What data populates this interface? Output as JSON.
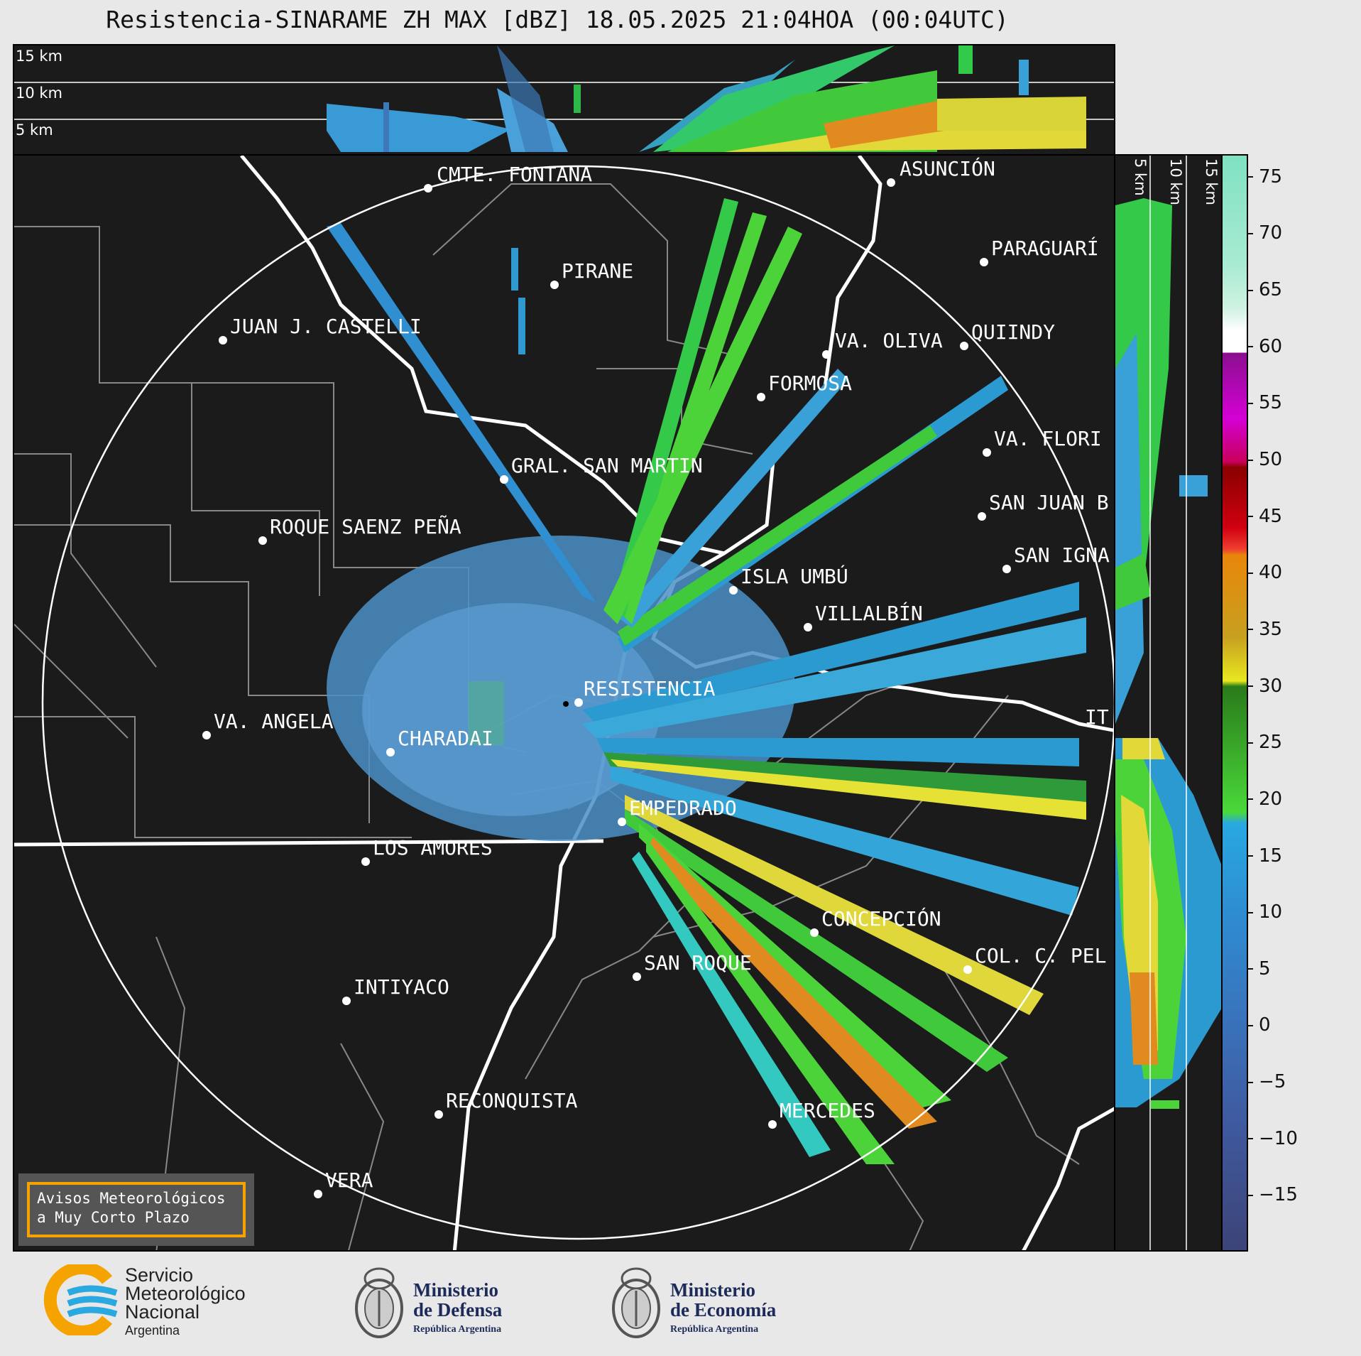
{
  "title": "Resistencia-SINARAME ZH MAX [dBZ] 18.05.2025 21:04HOA (00:04UTC)",
  "top_panel": {
    "height_labels": [
      "15 km",
      "10 km",
      "5 km"
    ]
  },
  "side_panel": {
    "height_labels": [
      "5 km",
      "10 km",
      "15 km"
    ]
  },
  "colorbar": {
    "ticks": [
      "75",
      "70",
      "65",
      "60",
      "55",
      "50",
      "45",
      "40",
      "35",
      "30",
      "25",
      "20",
      "15",
      "10",
      "5",
      "0",
      "−5",
      "−10",
      "−15"
    ],
    "range": [
      -20,
      77
    ]
  },
  "map": {
    "cities": [
      {
        "name": "CMTE. FONTANA"
      },
      {
        "name": "ASUNCIÓN"
      },
      {
        "name": "PIRANE"
      },
      {
        "name": "PARAGUARÍ"
      },
      {
        "name": "JUAN J. CASTELLI"
      },
      {
        "name": "VA. OLIVA"
      },
      {
        "name": "QUIINDY"
      },
      {
        "name": "FORMOSA"
      },
      {
        "name": "VA. FLORI"
      },
      {
        "name": "GRAL. SAN MARTIN"
      },
      {
        "name": "SAN JUAN B"
      },
      {
        "name": "ROQUE SAENZ PEÑA"
      },
      {
        "name": "SAN IGNA"
      },
      {
        "name": "ISLA UMBÚ"
      },
      {
        "name": "VILLALBÍN"
      },
      {
        "name": "RESISTENCIA"
      },
      {
        "name": "VA. ANGELA"
      },
      {
        "name": "CHARADAI"
      },
      {
        "name": "IT"
      },
      {
        "name": "EMPEDRADO"
      },
      {
        "name": "LOS AMORES"
      },
      {
        "name": "CONCEPCIÓN"
      },
      {
        "name": "COL. C. PEL"
      },
      {
        "name": "SAN ROQUE"
      },
      {
        "name": "INTIYACO"
      },
      {
        "name": "RECONQUISTA"
      },
      {
        "name": "MERCEDES"
      },
      {
        "name": "VERA"
      }
    ]
  },
  "aviso": {
    "line1": "Avisos Meteorológicos",
    "line2": "a Muy Corto Plazo"
  },
  "logos": {
    "smn": {
      "line1": "Servicio",
      "line2": "Meteorológico",
      "line3": "Nacional",
      "line4": "Argentina",
      "color": "#29a9e0",
      "accent": "#f5a300"
    },
    "defensa": {
      "line1": "Ministerio",
      "line2": "de Defensa",
      "line3": "República Argentina"
    },
    "economia": {
      "line1": "Ministerio",
      "line2": "de Economía",
      "line3": "República Argentina"
    }
  }
}
